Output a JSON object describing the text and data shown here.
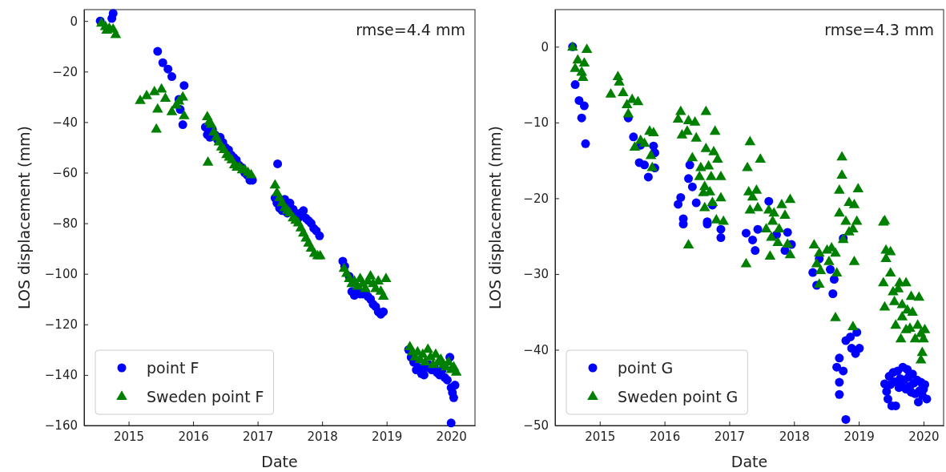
{
  "chart_data": [
    {
      "type": "scatter",
      "xlabel": "Date",
      "ylabel": "LOS displacement (mm)",
      "xlim": [
        2014.31,
        2020.37
      ],
      "xticks": [
        2015,
        2016,
        2017,
        2018,
        2019,
        2020
      ],
      "ylim": [
        -160,
        4.5
      ],
      "yticks": [
        0,
        -20,
        -40,
        -60,
        -80,
        -100,
        -120,
        -140,
        -160
      ],
      "legend": "bottom left",
      "annotations": [
        "rmse=4.4 mm"
      ],
      "series": [
        {
          "name": "point F",
          "color": "#0000ff",
          "marker": "circle",
          "x": [
            2014.56,
            2014.76,
            2014.74,
            2015.45,
            2015.53,
            2015.61,
            2015.67,
            2015.86,
            2015.78,
            2015.84,
            2015.8,
            2016.19,
            2016.22,
            2016.26,
            2016.3,
            2016.34,
            2016.38,
            2016.42,
            2016.46,
            2016.5,
            2016.55,
            2016.59,
            2016.63,
            2016.67,
            2016.71,
            2016.76,
            2016.8,
            2016.84,
            2016.88,
            2016.92,
            2017.31,
            2017.27,
            2017.3,
            2017.34,
            2017.38,
            2017.42,
            2017.46,
            2017.5,
            2017.55,
            2017.59,
            2017.63,
            2017.67,
            2017.71,
            2017.75,
            2017.79,
            2017.83,
            2017.87,
            2017.91,
            2017.96,
            2018.32,
            2018.35,
            2018.42,
            2018.46,
            2018.5,
            2018.55,
            2018.59,
            2018.63,
            2018.67,
            2018.71,
            2018.75,
            2018.79,
            2018.83,
            2018.87,
            2018.91,
            2018.95,
            2019.34,
            2019.38,
            2019.42,
            2019.46,
            2019.5,
            2019.54,
            2019.58,
            2019.62,
            2019.66,
            2019.7,
            2019.74,
            2019.78,
            2019.82,
            2019.86,
            2019.9,
            2019.94,
            2019.98,
            2020.0,
            2020.02,
            2020.04,
            2020.06,
            2020.0
          ],
          "values": [
            0,
            3,
            1,
            -12,
            -16.5,
            -19,
            -22,
            -25.5,
            -31,
            -41,
            -35,
            -42,
            -45,
            -46,
            -43,
            -45,
            -47,
            -46,
            -48,
            -50,
            -51,
            -53,
            -54,
            -55,
            -57,
            -58,
            -60,
            -61,
            -63,
            -63,
            -56.5,
            -70,
            -72,
            -74,
            -75,
            -70.5,
            -76,
            -72,
            -74.5,
            -76,
            -78,
            -76,
            -75,
            -78,
            -79,
            -80,
            -82,
            -83,
            -85,
            -95,
            -97,
            -101,
            -107,
            -108.5,
            -106,
            -108,
            -108,
            -107,
            -109,
            -110,
            -112,
            -113,
            -115,
            -116,
            -115,
            -130,
            -133,
            -135,
            -138,
            -137,
            -139.5,
            -140,
            -137,
            -136,
            -138,
            -137,
            -139,
            -140,
            -138,
            -141,
            -142,
            -133,
            -145,
            -147,
            -149,
            -144,
            -159
          ]
        },
        {
          "name": "Sweden point F",
          "color": "#008000",
          "marker": "triangle",
          "x": [
            2014.58,
            2014.64,
            2014.7,
            2014.76,
            2014.8,
            2014.66,
            2015.18,
            2015.28,
            2015.4,
            2015.51,
            2015.45,
            2015.43,
            2015.57,
            2015.67,
            2015.78,
            2015.84,
            2015.86,
            2015.74,
            2016.23,
            2016.22,
            2016.25,
            2016.28,
            2016.32,
            2016.36,
            2016.4,
            2016.44,
            2016.48,
            2016.52,
            2016.56,
            2016.6,
            2016.64,
            2016.68,
            2016.72,
            2016.76,
            2016.8,
            2016.85,
            2016.9,
            2017.27,
            2017.3,
            2017.34,
            2017.38,
            2017.42,
            2017.46,
            2017.5,
            2017.55,
            2017.59,
            2017.63,
            2017.67,
            2017.71,
            2017.75,
            2017.79,
            2017.83,
            2017.88,
            2017.93,
            2017.97,
            2018.34,
            2018.38,
            2018.42,
            2018.46,
            2018.5,
            2018.55,
            2018.59,
            2018.63,
            2018.67,
            2018.71,
            2018.75,
            2018.79,
            2018.83,
            2018.87,
            2018.91,
            2018.95,
            2018.99,
            2019.36,
            2019.4,
            2019.44,
            2019.48,
            2019.52,
            2019.56,
            2019.6,
            2019.64,
            2019.68,
            2019.72,
            2019.76,
            2019.8,
            2019.84,
            2019.88,
            2019.92,
            2019.96,
            2020.0,
            2020.04,
            2020.08
          ],
          "values": [
            -1,
            -2.3,
            -3,
            -3.4,
            -5.5,
            -3.8,
            -31.6,
            -29.7,
            -28.1,
            -27.1,
            -35,
            -42.9,
            -30.7,
            -36,
            -31.8,
            -30.2,
            -37.6,
            -33.4,
            -56,
            -38,
            -40,
            -41,
            -44,
            -46,
            -48,
            -50,
            -51,
            -53,
            -54,
            -55,
            -57,
            -58,
            -58,
            -59,
            -59,
            -60,
            -61,
            -65,
            -68,
            -70,
            -72,
            -74,
            -75,
            -76,
            -78,
            -79,
            -80,
            -82,
            -84,
            -86,
            -88,
            -90,
            -92,
            -93,
            -93,
            -98,
            -100,
            -102,
            -104,
            -103,
            -105,
            -102,
            -104,
            -106,
            -103,
            -101,
            -104,
            -106,
            -103,
            -107,
            -109,
            -102,
            -129,
            -131,
            -133,
            -131,
            -134,
            -132,
            -135,
            -130,
            -133,
            -136,
            -132,
            -135,
            -134,
            -136,
            -137,
            -135,
            -138,
            -137,
            -139
          ]
        }
      ]
    },
    {
      "type": "scatter",
      "xlabel": "Date",
      "ylabel": "LOS displacement (mm)",
      "xlim": [
        2014.31,
        2020.31
      ],
      "xticks": [
        2015,
        2016,
        2017,
        2018,
        2019,
        2020
      ],
      "ylim": [
        -50,
        4.9
      ],
      "yticks": [
        0,
        -10,
        -20,
        -30,
        -40,
        -50
      ],
      "legend": "bottom left",
      "annotations": [
        "rmse=4.3 mm"
      ],
      "series": [
        {
          "name": "point G",
          "color": "#0000ff",
          "marker": "circle",
          "x": [
            2014.58,
            2014.62,
            2014.68,
            2014.76,
            2014.72,
            2014.78,
            2015.44,
            2015.52,
            2015.63,
            2015.61,
            2015.69,
            2015.75,
            2015.85,
            2015.85,
            2015.83,
            2016.39,
            2016.37,
            2016.43,
            2016.25,
            2016.21,
            2016.29,
            2016.49,
            2016.66,
            2016.74,
            2016.87,
            2016.87,
            2016.29,
            2016.66,
            2017.26,
            2017.36,
            2017.4,
            2017.44,
            2017.61,
            2017.9,
            2017.96,
            2017.86,
            2017.73,
            2018.29,
            2018.35,
            2018.39,
            2018.56,
            2018.6,
            2018.62,
            2018.76,
            2018.7,
            2018.66,
            2018.76,
            2018.7,
            2018.7,
            2018.8,
            2018.8,
            2018.87,
            2018.97,
            2018.89,
            2019.01,
            2018.95,
            2019.4,
            2019.43,
            2019.45,
            2019.47,
            2019.49,
            2019.51,
            2019.53,
            2019.55,
            2019.57,
            2019.6,
            2019.62,
            2019.64,
            2019.66,
            2019.68,
            2019.7,
            2019.73,
            2019.75,
            2019.77,
            2019.79,
            2019.81,
            2019.83,
            2019.85,
            2019.87,
            2019.9,
            2019.92,
            2019.94,
            2019.96,
            2019.98,
            2020.0,
            2020.02,
            2020.05
          ],
          "values": [
            0,
            -5,
            -7.1,
            -7.8,
            -9.4,
            -12.8,
            -9.4,
            -11.9,
            -13,
            -15.3,
            -15.6,
            -17.2,
            -14,
            -16,
            -13.1,
            -15.6,
            -17.4,
            -18.5,
            -19.9,
            -20.8,
            -22.7,
            -20.6,
            -23.1,
            -20.9,
            -24.1,
            -25.2,
            -23.4,
            -23.4,
            -24.6,
            -25.5,
            -26.9,
            -24.1,
            -20.4,
            -24.5,
            -26.1,
            -26.9,
            -24.8,
            -29.8,
            -31.5,
            -28,
            -29.4,
            -32.6,
            -30.7,
            -25.3,
            -41.1,
            -42.3,
            -42.8,
            -44.3,
            -45.9,
            -49.2,
            -38.8,
            -38.3,
            -37.7,
            -39.8,
            -39.8,
            -40.5,
            -44.5,
            -45.5,
            -46.5,
            -43.5,
            -44.6,
            -47.4,
            -43,
            -44.2,
            -47.4,
            -42.8,
            -45,
            -43.8,
            -44.6,
            -42.3,
            -44,
            -45.2,
            -42.6,
            -43.6,
            -44.8,
            -45.6,
            -43.2,
            -44.4,
            -45.8,
            -44,
            -46.9,
            -45.4,
            -44.3,
            -46,
            -45.2,
            -44.6,
            -46.5
          ]
        },
        {
          "name": "Sweden point G",
          "color": "#008000",
          "marker": "triangle",
          "x": [
            2014.58,
            2014.8,
            2014.66,
            2014.76,
            2014.62,
            2014.72,
            2014.74,
            2015.28,
            2015.3,
            2015.17,
            2015.36,
            2015.42,
            2015.5,
            2015.59,
            2015.44,
            2015.77,
            2015.83,
            2015.63,
            2015.69,
            2015.79,
            2015.81,
            2015.54,
            2016.25,
            2016.21,
            2016.37,
            2016.47,
            2016.64,
            2016.27,
            2016.35,
            2016.49,
            2016.78,
            2016.43,
            2016.64,
            2016.76,
            2016.82,
            2016.56,
            2016.68,
            2016.54,
            2016.72,
            2016.87,
            2016.62,
            2016.7,
            2016.6,
            2016.87,
            2016.62,
            2016.74,
            2016.8,
            2016.91,
            2016.37,
            2017.32,
            2017.48,
            2017.28,
            2017.3,
            2017.42,
            2017.36,
            2017.32,
            2017.44,
            2017.61,
            2017.69,
            2017.81,
            2017.94,
            2017.67,
            2017.77,
            2017.86,
            2017.57,
            2017.65,
            2017.75,
            2017.9,
            2017.94,
            2017.63,
            2017.26,
            2018.31,
            2018.39,
            2018.35,
            2018.41,
            2018.39,
            2018.51,
            2018.58,
            2018.64,
            2018.54,
            2018.66,
            2018.64,
            2018.91,
            2018.93,
            2018.76,
            2018.74,
            2018.74,
            2018.7,
            2018.99,
            2018.85,
            2018.93,
            2018.7,
            2018.8,
            2018.97,
            2018.85,
            2018.91,
            2019.38,
            2019.4,
            2019.42,
            2019.49,
            2019.42,
            2019.49,
            2019.38,
            2019.63,
            2019.73,
            2019.53,
            2019.61,
            2019.81,
            2019.93,
            2019.4,
            2019.55,
            2019.67,
            2019.75,
            2019.83,
            2019.57,
            2019.67,
            2019.79,
            2019.91,
            2019.65,
            2019.73,
            2019.87,
            2019.96,
            2020.0,
            2019.98,
            2019.96,
            2020.02
          ],
          "values": [
            -0.1,
            -0.4,
            -1.8,
            -2.2,
            -2.9,
            -3.4,
            -4.1,
            -4,
            -4.7,
            -6.3,
            -6.1,
            -7.7,
            -7,
            -7.3,
            -8.9,
            -11.2,
            -11.4,
            -12.4,
            -12.8,
            -14.4,
            -16,
            -13.3,
            -8.6,
            -9.6,
            -9.8,
            -10,
            -8.6,
            -11.7,
            -11.2,
            -12.1,
            -11.2,
            -14.7,
            -13.5,
            -13.9,
            -14.9,
            -16,
            -15.8,
            -17.2,
            -17.2,
            -17.2,
            -18.5,
            -19.2,
            -19.3,
            -20,
            -21.3,
            -20.6,
            -22.9,
            -23.1,
            -26.2,
            -12.6,
            -14.9,
            -16,
            -19.2,
            -19,
            -19.9,
            -21.6,
            -21.3,
            -21.6,
            -22,
            -20.9,
            -20.2,
            -23.1,
            -24.1,
            -22.3,
            -24.1,
            -25.2,
            -25.9,
            -26.1,
            -27.5,
            -27.7,
            -28.7,
            -26.2,
            -27.3,
            -28.7,
            -29.6,
            -31.4,
            -26.9,
            -26.6,
            -27.3,
            -28.4,
            -29.9,
            -35.8,
            -37,
            -28.4,
            -25.5,
            -14.6,
            -17,
            -19,
            -18.8,
            -20.6,
            -20.9,
            -22,
            -23.1,
            -23.1,
            -24.5,
            -24.1,
            -23.2,
            -23,
            -26.9,
            -27.1,
            -28,
            -29.9,
            -31.2,
            -31.2,
            -31.2,
            -32.4,
            -32,
            -33,
            -33.1,
            -34.4,
            -33.7,
            -34.1,
            -34.8,
            -35.1,
            -36.8,
            -35.7,
            -37.2,
            -36.8,
            -38.6,
            -37.4,
            -38.6,
            -37.9,
            -38.6,
            -40.4,
            -41.4,
            -37.4
          ]
        }
      ]
    }
  ]
}
